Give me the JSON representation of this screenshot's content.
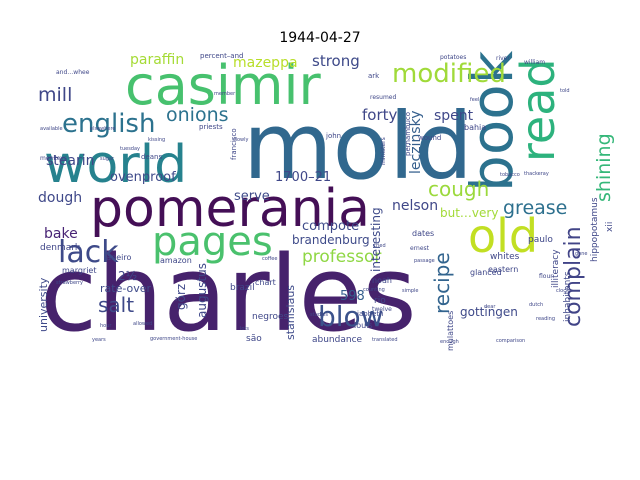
{
  "chart_data": {
    "type": "wordcloud",
    "title": "1944-04-27",
    "background": "#ffffff",
    "palette": "viridis",
    "words": [
      {
        "text": "charles",
        "rank": 1,
        "color": "#46226c",
        "rotate": 0
      },
      {
        "text": "mold",
        "rank": 2,
        "color": "#31688e",
        "rotate": 0
      },
      {
        "text": "pomerania",
        "rank": 3,
        "color": "#440f56",
        "rotate": 0
      },
      {
        "text": "casimir",
        "rank": 4,
        "color": "#47c16e",
        "rotate": 0
      },
      {
        "text": "world",
        "rank": 5,
        "color": "#26828e",
        "rotate": 0
      },
      {
        "text": "book",
        "rank": 6,
        "color": "#2c728e",
        "rotate": 90
      },
      {
        "text": "read",
        "rank": 7,
        "color": "#2db27d",
        "rotate": 90
      },
      {
        "text": "pages",
        "rank": 8,
        "color": "#4ac16d",
        "rotate": 0
      },
      {
        "text": "old",
        "rank": 9,
        "color": "#c2df23",
        "rotate": 0
      },
      {
        "text": "lack",
        "rank": 10,
        "color": "#3e4a89",
        "rotate": 0
      },
      {
        "text": "modified",
        "rank": 11,
        "color": "#a0da39",
        "rotate": 0
      },
      {
        "text": "english",
        "rank": 12,
        "color": "#2c728e",
        "rotate": 0
      },
      {
        "text": "blow",
        "rank": 13,
        "color": "#3b528b",
        "rotate": 0
      },
      {
        "text": "recipe",
        "rank": 14,
        "color": "#32648e",
        "rotate": 90
      },
      {
        "text": "complain",
        "rank": 15,
        "color": "#414487",
        "rotate": 90
      },
      {
        "text": "shining",
        "rank": 16,
        "color": "#35b779",
        "rotate": 90
      },
      {
        "text": "cough",
        "rank": 17,
        "color": "#9bd93c",
        "rotate": 0
      },
      {
        "text": "salt",
        "rank": 18,
        "color": "#3e4989",
        "rotate": 0
      },
      {
        "text": "onions",
        "rank": 19,
        "color": "#2c728e",
        "rotate": 0
      },
      {
        "text": "grease",
        "rank": 20,
        "color": "#2d708e",
        "rotate": 0
      },
      {
        "text": "mill",
        "rank": 21,
        "color": "#3f4788",
        "rotate": 0
      },
      {
        "text": "professor",
        "rank": 22,
        "color": "#8fd744",
        "rotate": 0
      },
      {
        "text": "leczinsky",
        "rank": 23,
        "color": "#355f8d",
        "rotate": 90
      },
      {
        "text": "strong",
        "rank": 24,
        "color": "#3e4a89",
        "rotate": 0
      },
      {
        "text": "forty",
        "rank": 25,
        "color": "#3f4788",
        "rotate": 0
      },
      {
        "text": "spent",
        "rank": 26,
        "color": "#3f4889",
        "rotate": 0
      },
      {
        "text": "paraffin",
        "rank": 27,
        "color": "#a5db36",
        "rotate": 0
      },
      {
        "text": "mazeppa",
        "rank": 28,
        "color": "#b8de29",
        "rotate": 0
      },
      {
        "text": "stearin",
        "rank": 29,
        "color": "#404688",
        "rotate": 0
      },
      {
        "text": "1700–21",
        "rank": 30,
        "color": "#3f4788",
        "rotate": 0
      },
      {
        "text": "ovenproof",
        "rank": 31,
        "color": "#3e4a89",
        "rotate": 0
      },
      {
        "text": "serve",
        "rank": 32,
        "color": "#3e4a89",
        "rotate": 0
      },
      {
        "text": "dough",
        "rank": 33,
        "color": "#3f4889",
        "rotate": 0
      },
      {
        "text": "bake",
        "rank": 34,
        "color": "#482475",
        "rotate": 0
      },
      {
        "text": "interesting",
        "rank": 35,
        "color": "#3e4a89",
        "rotate": 90
      },
      {
        "text": "nelson",
        "rank": 36,
        "color": "#3f4788",
        "rotate": 0
      },
      {
        "text": "compote",
        "rank": 37,
        "color": "#3e4a89",
        "rotate": 0
      },
      {
        "text": "brandenburg",
        "rank": 38,
        "color": "#3e4a89",
        "rotate": 0
      },
      {
        "text": "but…very",
        "rank": 39,
        "color": "#a2da37",
        "rotate": 0
      },
      {
        "text": "gottingen",
        "rank": 40,
        "color": "#3e4989",
        "rotate": 0
      },
      {
        "text": "598",
        "rank": 41,
        "color": "#355e8d",
        "rotate": 0
      },
      {
        "text": "görz",
        "rank": 42,
        "color": "#3f4889",
        "rotate": 90
      },
      {
        "text": "augustus",
        "rank": 43,
        "color": "#3f4889",
        "rotate": 90
      },
      {
        "text": "stanislaus",
        "rank": 44,
        "color": "#3e4a89",
        "rotate": 90
      },
      {
        "text": "university",
        "rank": 45,
        "color": "#3e4989",
        "rotate": 90
      },
      {
        "text": "2½",
        "rank": 46,
        "color": "#3f4889",
        "rotate": 0
      },
      {
        "text": "rate-over",
        "rank": 47,
        "color": "#3e4a89",
        "rotate": 0
      },
      {
        "text": "denmark",
        "rank": 48,
        "color": "#404688",
        "rotate": 0
      },
      {
        "text": "margriet",
        "rank": 49,
        "color": "#3f4788",
        "rotate": 0
      },
      {
        "text": "janeiro",
        "rank": 50,
        "color": "#3f4788",
        "rotate": 0
      },
      {
        "text": "amazon",
        "rank": 51,
        "color": "#3f4788",
        "rotate": 0
      },
      {
        "text": "brazil",
        "rank": 52,
        "color": "#3f4788",
        "rotate": 0
      },
      {
        "text": "negroes",
        "rank": 53,
        "color": "#3f4788",
        "rotate": 0
      },
      {
        "text": "abundance",
        "rank": 54,
        "color": "#3f4788",
        "rotate": 0
      },
      {
        "text": "inhabitants",
        "rank": 55,
        "color": "#3f4788",
        "rotate": 90
      },
      {
        "text": "hippopotamus",
        "rank": 56,
        "color": "#3f4788",
        "rotate": 90
      },
      {
        "text": "illiteracy",
        "rank": 57,
        "color": "#3f4788",
        "rotate": 90
      },
      {
        "text": "whites",
        "rank": 58,
        "color": "#3f4788",
        "rotate": 0
      },
      {
        "text": "paulo",
        "rank": 59,
        "color": "#3f4788",
        "rotate": 0
      },
      {
        "text": "eastern",
        "rank": 60,
        "color": "#3f4788",
        "rotate": 0
      },
      {
        "text": "mulattoes",
        "rank": 61,
        "color": "#3f4788",
        "rotate": 90
      },
      {
        "text": "rio",
        "rank": 62,
        "color": "#3f4788",
        "rotate": 0
      },
      {
        "text": "são",
        "rank": 63,
        "color": "#3f4788",
        "rotate": 0
      },
      {
        "text": "louis",
        "rank": 64,
        "color": "#3f4788",
        "rotate": 0
      },
      {
        "text": "pernambuco",
        "rank": 65,
        "color": "#3f4788",
        "rotate": 90
      },
      {
        "text": "bahia",
        "rank": 66,
        "color": "#3f4788",
        "rotate": 0
      },
      {
        "text": "wound",
        "rank": 67,
        "color": "#3f4788",
        "rotate": 0
      },
      {
        "text": "glanced",
        "rank": 68,
        "color": "#3f4788",
        "rotate": 0
      },
      {
        "text": "dates",
        "rank": 69,
        "color": "#3f4788",
        "rotate": 0
      },
      {
        "text": "chart",
        "rank": 70,
        "color": "#3f4788",
        "rotate": 0
      },
      {
        "text": "noah",
        "rank": 71,
        "color": "#3f4788",
        "rotate": 0
      },
      {
        "text": "japheth",
        "rank": 72,
        "color": "#3f4788",
        "rotate": 0
      },
      {
        "text": "john",
        "rank": 73,
        "color": "#3f4788",
        "rotate": 0
      },
      {
        "text": "francisco",
        "rank": 74,
        "color": "#3f4788",
        "rotate": 90
      },
      {
        "text": "xii",
        "rank": 75,
        "color": "#3f4788",
        "rotate": 90
      },
      {
        "text": "resumed",
        "rank": 76,
        "color": "#3f4788",
        "rotate": 0
      },
      {
        "text": "ark",
        "rank": 77,
        "color": "#3f4788",
        "rotate": 0
      },
      {
        "text": "ernest",
        "rank": 78,
        "color": "#3f4788",
        "rotate": 0
      },
      {
        "text": "twelve",
        "rank": 79,
        "color": "#3f4788",
        "rotate": 0
      },
      {
        "text": "ministers",
        "rank": 80,
        "color": "#3f4788",
        "rotate": 90
      },
      {
        "text": "deans",
        "rank": 81,
        "color": "#3f4788",
        "rotate": 0
      },
      {
        "text": "priests",
        "rank": 82,
        "color": "#3f4788",
        "rotate": 0
      },
      {
        "text": "percent–and",
        "rank": 83,
        "color": "#3f4788",
        "rotate": 0
      },
      {
        "text": "and…whee",
        "rank": 84,
        "color": "#3f4788",
        "rotate": 0
      },
      {
        "text": "monkeys",
        "rank": 85,
        "color": "#3f4788",
        "rotate": 0
      },
      {
        "text": "available",
        "rank": 86,
        "color": "#3f4788",
        "rotate": 0
      },
      {
        "text": "elsewhere",
        "rank": 87,
        "color": "#3f4788",
        "rotate": 0
      },
      {
        "text": "years",
        "rank": 88,
        "color": "#3f4788",
        "rotate": 0
      },
      {
        "text": "government-house",
        "rank": 89,
        "color": "#3f4788",
        "rotate": 0
      },
      {
        "text": "translated",
        "rank": 90,
        "color": "#3f4788",
        "rotate": 0
      },
      {
        "text": "enough",
        "rank": 91,
        "color": "#3f4788",
        "rotate": 0
      },
      {
        "text": "comparison",
        "rank": 92,
        "color": "#3f4788",
        "rotate": 0
      },
      {
        "text": "reading",
        "rank": 93,
        "color": "#3f4788",
        "rotate": 0
      },
      {
        "text": "clock",
        "rank": 94,
        "color": "#3f4788",
        "rotate": 0
      },
      {
        "text": "dutch",
        "rank": 95,
        "color": "#3f4788",
        "rotate": 0
      },
      {
        "text": "flour",
        "rank": 96,
        "color": "#3f4788",
        "rotate": 0
      },
      {
        "text": "william",
        "rank": 97,
        "color": "#3f4788",
        "rotate": 0
      },
      {
        "text": "potatoes",
        "rank": 98,
        "color": "#3f4788",
        "rotate": 0
      },
      {
        "text": "river",
        "rank": 99,
        "color": "#3f4788",
        "rotate": 0
      },
      {
        "text": "thackeray",
        "rank": 100,
        "color": "#3f4788",
        "rotate": 0
      },
      {
        "text": "counting",
        "rank": 101,
        "color": "#3f4788",
        "rotate": 0
      },
      {
        "text": "passage",
        "rank": 102,
        "color": "#3f4788",
        "rotate": 0
      },
      {
        "text": "tobacco",
        "rank": 103,
        "color": "#3f4788",
        "rotate": 0
      },
      {
        "text": "coffee",
        "rank": 104,
        "color": "#3f4788",
        "rotate": 0
      },
      {
        "text": "studies",
        "rank": 105,
        "color": "#3f4788",
        "rotate": 0
      },
      {
        "text": "tuesday",
        "rank": 106,
        "color": "#3f4788",
        "rotate": 0
      },
      {
        "text": "sugar",
        "rank": 107,
        "color": "#3f4788",
        "rotate": 0
      },
      {
        "text": "allowed",
        "rank": 108,
        "color": "#3f4788",
        "rotate": 0
      },
      {
        "text": "strawberry",
        "rank": 109,
        "color": "#3f4788",
        "rotate": 0
      },
      {
        "text": "slowly",
        "rank": 110,
        "color": "#3f4788",
        "rotate": 0
      },
      {
        "text": "kissing",
        "rank": 111,
        "color": "#3f4788",
        "rotate": 0
      },
      {
        "text": "member",
        "rank": 112,
        "color": "#3f4788",
        "rotate": 0
      },
      {
        "text": "simple",
        "rank": 113,
        "color": "#3f4788",
        "rotate": 0
      },
      {
        "text": "tried",
        "rank": 114,
        "color": "#3f4788",
        "rotate": 0
      },
      {
        "text": "hour",
        "rank": 115,
        "color": "#3f4788",
        "rotate": 0
      },
      {
        "text": "feel",
        "rank": 116,
        "color": "#3f4788",
        "rotate": 0
      },
      {
        "text": "dear",
        "rank": 117,
        "color": "#3f4788",
        "rotate": 0
      },
      {
        "text": "told",
        "rank": 118,
        "color": "#3f4788",
        "rotate": 0
      },
      {
        "text": "gone",
        "rank": 119,
        "color": "#3f4788",
        "rotate": 0
      },
      {
        "text": "lots",
        "rank": 120,
        "color": "#3f4788",
        "rotate": 0
      }
    ]
  }
}
